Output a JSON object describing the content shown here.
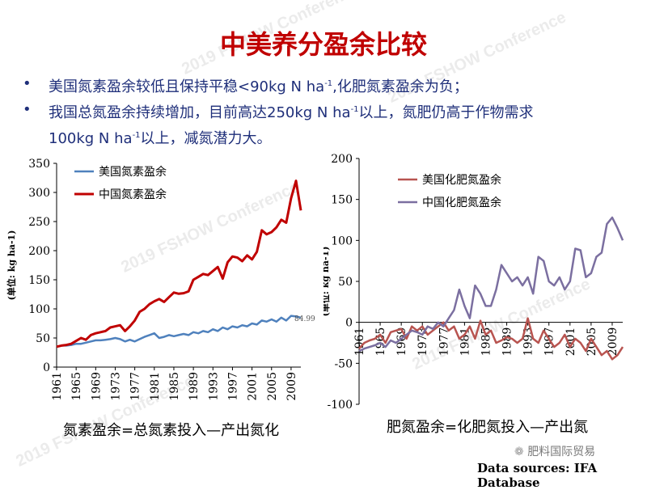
{
  "title": "中美养分盈余比较",
  "bullets": [
    {
      "marker": "•",
      "pre": "美国氮素盈余较低且保持平稳<90kg N ha",
      "sup": "-1",
      "post": ",化肥氮素盈余为负；"
    },
    {
      "marker": "•",
      "pre": "我国总氮盈余持续增加，目前高达250kg N ha",
      "sup": "-1",
      "post": "以上，氮肥仍高于作物需求"
    }
  ],
  "bullet2_line2": {
    "pre": "100kg N ha",
    "sup": "-1",
    "post": "以上，减氮潜力大。"
  },
  "captions": {
    "left": "氮素盈余=总氮素投入—产出氮化",
    "right": "肥氮盈余=化肥氮投入—产出氮"
  },
  "watermarks": [
    "2019 FSHOW Conference",
    "2019 FSHOW Conference",
    "2019 FSHOW Conference",
    "2019 FSHOW Conference",
    "2019 FSHOW Conference"
  ],
  "brand": "肥料国际贸易",
  "source": "Data sources: IFA Database",
  "colors": {
    "us": "#4f81bd",
    "cn": "#c00000",
    "cn_purple": "#7b6fa0",
    "us_red": "#b85450"
  },
  "chart_data": [
    {
      "type": "line",
      "ylabel": "(单位: kg ha-1)",
      "ylim": [
        0,
        350
      ],
      "yticks": [
        "0",
        "50",
        "100",
        "150",
        "200",
        "250",
        "300",
        "350"
      ],
      "xtick_labels": [
        "1961",
        "1965",
        "1969",
        "1973",
        "1977",
        "1981",
        "1985",
        "1989",
        "1993",
        "1997",
        "2001",
        "2005",
        "2009"
      ],
      "legend": [
        "美国氮素盈余",
        "中国氮素盈余"
      ],
      "annotation": "84.99",
      "x": [
        1961,
        1962,
        1963,
        1964,
        1965,
        1966,
        1967,
        1968,
        1969,
        1970,
        1971,
        1972,
        1973,
        1974,
        1975,
        1976,
        1977,
        1978,
        1979,
        1980,
        1981,
        1982,
        1983,
        1984,
        1985,
        1986,
        1987,
        1988,
        1989,
        1990,
        1991,
        1992,
        1993,
        1994,
        1995,
        1996,
        1997,
        1998,
        1999,
        2000,
        2001,
        2002,
        2003,
        2004,
        2005,
        2006,
        2007,
        2008,
        2009,
        2010,
        2011
      ],
      "series": [
        {
          "name": "美国氮素盈余",
          "values": [
            35,
            37,
            37,
            38,
            40,
            40,
            42,
            44,
            46,
            46,
            47,
            48,
            50,
            48,
            44,
            47,
            44,
            48,
            52,
            55,
            58,
            50,
            52,
            55,
            53,
            55,
            57,
            55,
            60,
            58,
            62,
            60,
            65,
            62,
            68,
            65,
            70,
            68,
            72,
            70,
            75,
            73,
            80,
            78,
            82,
            78,
            85,
            80,
            88,
            87,
            85
          ]
        },
        {
          "name": "中国氮素盈余",
          "values": [
            35,
            37,
            38,
            40,
            45,
            50,
            47,
            55,
            58,
            60,
            62,
            68,
            70,
            72,
            62,
            70,
            80,
            95,
            100,
            108,
            113,
            117,
            112,
            120,
            128,
            126,
            127,
            130,
            150,
            155,
            160,
            158,
            165,
            172,
            152,
            180,
            190,
            188,
            182,
            192,
            185,
            198,
            235,
            228,
            232,
            240,
            253,
            248,
            290,
            320,
            269
          ]
        }
      ]
    },
    {
      "type": "line",
      "ylabel": "(单位: kg ha-1)",
      "ylim": [
        -100,
        200
      ],
      "yticks": [
        "-100",
        "-50",
        "0",
        "50",
        "100",
        "150",
        "200"
      ],
      "xtick_labels": [
        "1961",
        "1965",
        "1969",
        "1973",
        "1977",
        "1981",
        "1985",
        "1989",
        "1993",
        "1997",
        "2001",
        "2005",
        "2009"
      ],
      "legend": [
        "美国化肥氮盈余",
        "中国化肥氮盈余"
      ],
      "x": [
        1961,
        1962,
        1963,
        1964,
        1965,
        1966,
        1967,
        1968,
        1969,
        1970,
        1971,
        1972,
        1973,
        1974,
        1975,
        1976,
        1977,
        1978,
        1979,
        1980,
        1981,
        1982,
        1983,
        1984,
        1985,
        1986,
        1987,
        1988,
        1989,
        1990,
        1991,
        1992,
        1993,
        1994,
        1995,
        1996,
        1997,
        1998,
        1999,
        2000,
        2001,
        2002,
        2003,
        2004,
        2005,
        2006,
        2007,
        2008,
        2009,
        2010,
        2011
      ],
      "series": [
        {
          "name": "美国化肥氮盈余",
          "values": [
            -32,
            -25,
            -22,
            -20,
            -15,
            -25,
            -12,
            -10,
            -8,
            -20,
            -5,
            -10,
            -5,
            -15,
            -10,
            -5,
            0,
            -10,
            -5,
            -20,
            -15,
            -5,
            -20,
            2,
            -15,
            -10,
            -25,
            -22,
            -18,
            -20,
            -25,
            -20,
            5,
            -20,
            -25,
            -10,
            -20,
            -30,
            -25,
            -15,
            -30,
            -20,
            -25,
            -35,
            -20,
            -30,
            -40,
            -35,
            -45,
            -40,
            -30
          ]
        },
        {
          "name": "中国化肥氮盈余",
          "values": [
            -35,
            -32,
            -30,
            -28,
            -25,
            -30,
            -22,
            -25,
            -20,
            -15,
            -10,
            -12,
            -15,
            -5,
            -8,
            0,
            -5,
            5,
            15,
            40,
            20,
            5,
            45,
            35,
            20,
            20,
            40,
            70,
            60,
            50,
            55,
            45,
            55,
            35,
            80,
            75,
            50,
            45,
            55,
            40,
            50,
            90,
            88,
            55,
            60,
            80,
            85,
            120,
            128,
            115,
            100
          ]
        }
      ]
    }
  ]
}
